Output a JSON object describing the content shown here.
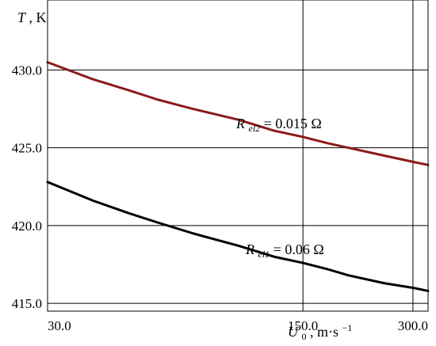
{
  "chart_data": {
    "type": "line",
    "title": "",
    "xlabel": {
      "main": "U",
      "sub": "0",
      "unit": ", m·s",
      "sup": "−1"
    },
    "ylabel": {
      "main": "T",
      "unit": ", K"
    },
    "xlim": [
      30.0,
      330.0
    ],
    "ylim": [
      414.5,
      434.5
    ],
    "x_scale": "log",
    "x_ticks": [
      30.0,
      150.0,
      300.0
    ],
    "x_tick_labels": [
      "30.0",
      "150.0",
      "300.0"
    ],
    "y_ticks": [
      415.0,
      420.0,
      425.0,
      430.0
    ],
    "y_tick_labels": [
      "415.0",
      "420.0",
      "425.0",
      "430.0"
    ],
    "grid": true,
    "series": [
      {
        "label_parts": {
          "main": "R",
          "sub": "el2",
          "value": " = 0.015 Ω"
        },
        "color": "#8b1a1a",
        "x": [
          30,
          40,
          50,
          60,
          75,
          100,
          125,
          150,
          175,
          200,
          250,
          300,
          330
        ],
        "y": [
          430.5,
          429.4,
          428.7,
          428.1,
          427.5,
          426.8,
          426.1,
          425.7,
          425.3,
          425.0,
          424.5,
          424.1,
          423.9
        ]
      },
      {
        "label_parts": {
          "main": "R",
          "sub": "el1",
          "value": " = 0.06 Ω"
        },
        "color": "#000000",
        "x": [
          30,
          40,
          50,
          60,
          75,
          100,
          125,
          150,
          175,
          200,
          250,
          300,
          330
        ],
        "y": [
          422.8,
          421.6,
          420.8,
          420.2,
          419.5,
          418.7,
          418.0,
          417.6,
          417.2,
          416.8,
          416.3,
          416.0,
          415.8
        ]
      }
    ]
  }
}
